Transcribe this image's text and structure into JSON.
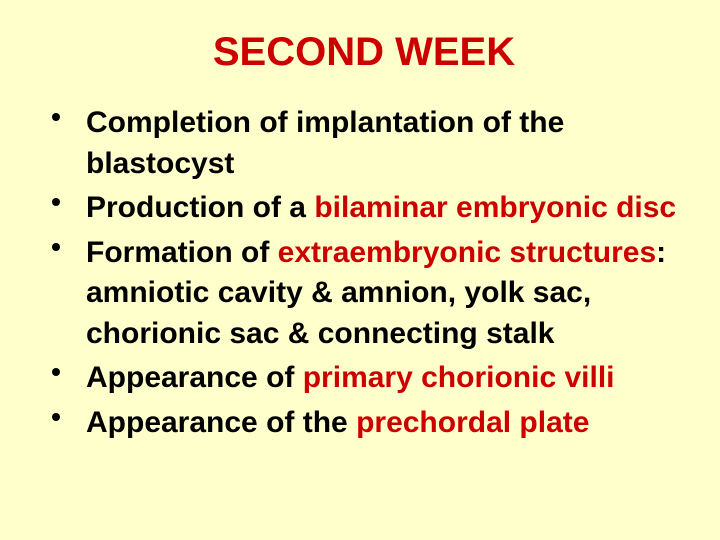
{
  "background_color": "#ffffcc",
  "title": {
    "text": "SECOND WEEK",
    "color": "#cc0000",
    "fontsize": 40,
    "font_weight": "bold"
  },
  "bullet": {
    "color": "#000000",
    "size": 8
  },
  "text": {
    "color": "#000000",
    "emphasis_color": "#cc0000",
    "fontsize": 30,
    "font_weight": "bold"
  },
  "items": [
    {
      "parts": [
        {
          "text": "Completion of implantation of the blastocyst",
          "emph": false
        }
      ]
    },
    {
      "parts": [
        {
          "text": "Production of a ",
          "emph": false
        },
        {
          "text": "bilaminar embryonic disc",
          "emph": true
        }
      ]
    },
    {
      "parts": [
        {
          "text": "Formation of ",
          "emph": false
        },
        {
          "text": "extraembryonic structures",
          "emph": true
        },
        {
          "text": ": amniotic cavity & amnion, yolk sac, chorionic sac & connecting stalk",
          "emph": false
        }
      ]
    },
    {
      "parts": [
        {
          "text": "Appearance of ",
          "emph": false
        },
        {
          "text": "primary chorionic villi",
          "emph": true
        }
      ]
    },
    {
      "parts": [
        {
          "text": "Appearance of the ",
          "emph": false
        },
        {
          "text": "prechordal plate",
          "emph": true
        }
      ]
    }
  ]
}
